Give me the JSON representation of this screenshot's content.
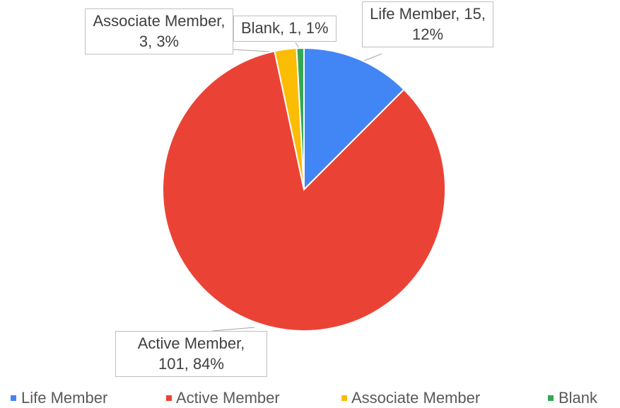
{
  "chart_data": {
    "type": "pie",
    "categories": [
      "Life Member",
      "Active Member",
      "Associate Member",
      "Blank"
    ],
    "values": [
      15,
      101,
      3,
      1
    ],
    "value_labels": [
      "Life Member, 15, 12%",
      "Active Member, 101, 84%",
      "Associate Member, 3, 3%",
      "Blank, 1, 1%"
    ],
    "colors": [
      "#4285f4",
      "#ea4335",
      "#fbbc04",
      "#34a853"
    ],
    "legend": "bottom"
  }
}
